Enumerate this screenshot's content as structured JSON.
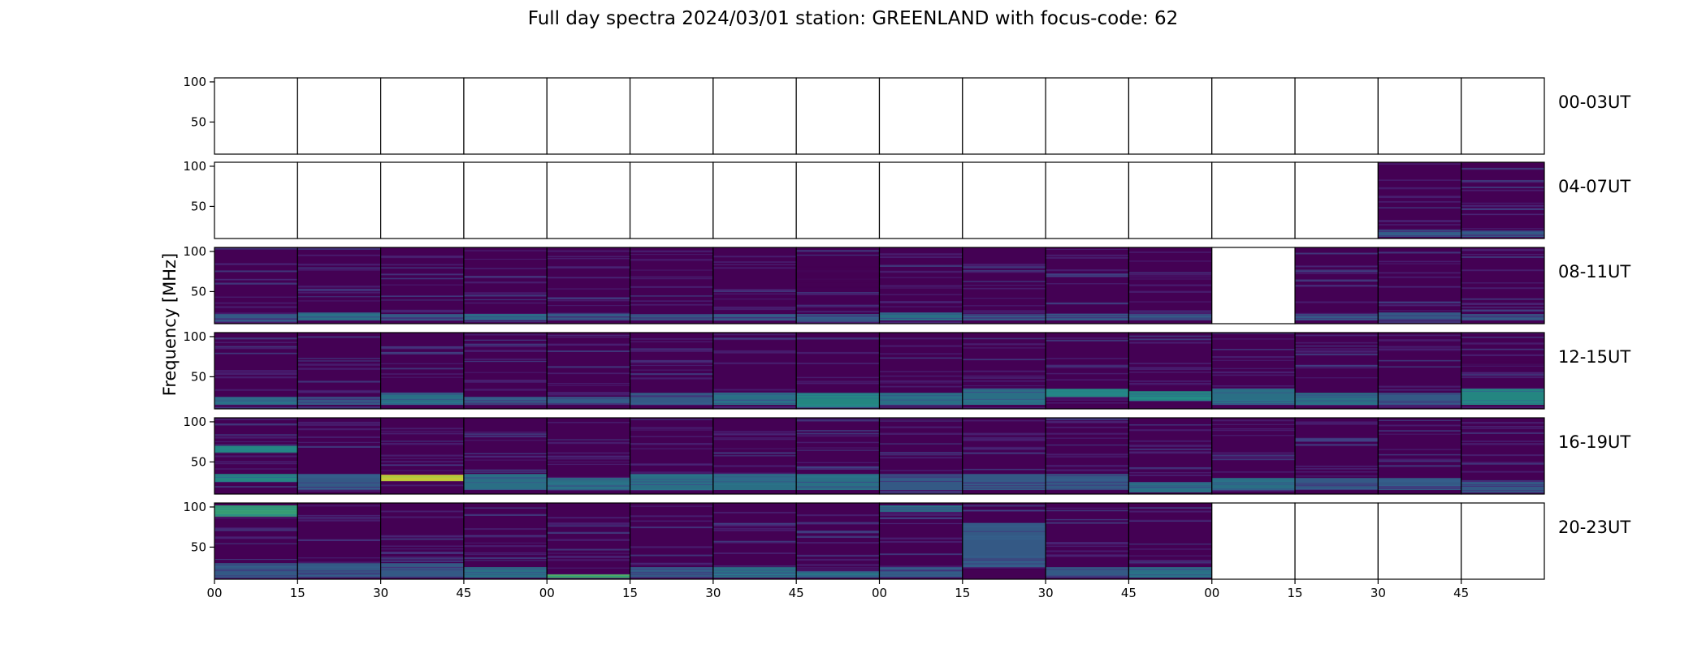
{
  "chart_data": {
    "type": "heatmap",
    "title": "Full day spectra 2024/03/01 station: GREENLAND with focus-code: 62",
    "ylabel": "Frequency [MHz]",
    "ylim": [
      10,
      105
    ],
    "yticks": [
      50,
      100
    ],
    "x_tick_labels": [
      "00",
      "15",
      "30",
      "45",
      "00",
      "15",
      "30",
      "45",
      "00",
      "15",
      "30",
      "45",
      "00",
      "15",
      "30",
      "45"
    ],
    "panels_per_row": 16,
    "colormap": [
      "#440154",
      "#482878",
      "#3e4a89",
      "#31688e",
      "#26828e",
      "#1f9e89",
      "#35b779",
      "#6ece58",
      "#b5de2b",
      "#fde725"
    ],
    "rows": [
      {
        "label": "00-03UT",
        "panels": [
          {
            "data": false
          },
          {
            "data": false
          },
          {
            "data": false
          },
          {
            "data": false
          },
          {
            "data": false
          },
          {
            "data": false
          },
          {
            "data": false
          },
          {
            "data": false
          },
          {
            "data": false
          },
          {
            "data": false
          },
          {
            "data": false
          },
          {
            "data": false
          },
          {
            "data": false
          },
          {
            "data": false
          },
          {
            "data": false
          },
          {
            "data": false
          }
        ]
      },
      {
        "label": "04-07UT",
        "panels": [
          {
            "data": false
          },
          {
            "data": false
          },
          {
            "data": false
          },
          {
            "data": false
          },
          {
            "data": false
          },
          {
            "data": false
          },
          {
            "data": false
          },
          {
            "data": false
          },
          {
            "data": false
          },
          {
            "data": false
          },
          {
            "data": false
          },
          {
            "data": false
          },
          {
            "data": false
          },
          {
            "data": false
          },
          {
            "data": true,
            "bands": [
              {
                "f0": 12,
                "f1": 20,
                "level": 0.35
              }
            ]
          },
          {
            "data": true,
            "bands": [
              {
                "f0": 12,
                "f1": 20,
                "level": 0.3
              }
            ]
          }
        ]
      },
      {
        "label": "08-11UT",
        "panels": [
          {
            "data": true,
            "bands": [
              {
                "f0": 12,
                "f1": 22,
                "level": 0.3
              }
            ]
          },
          {
            "data": true,
            "bands": [
              {
                "f0": 14,
                "f1": 24,
                "level": 0.45
              }
            ]
          },
          {
            "data": true,
            "bands": [
              {
                "f0": 14,
                "f1": 22,
                "level": 0.3
              }
            ]
          },
          {
            "data": true,
            "bands": [
              {
                "f0": 14,
                "f1": 22,
                "level": 0.4
              }
            ]
          },
          {
            "data": true,
            "bands": [
              {
                "f0": 14,
                "f1": 22,
                "level": 0.3
              }
            ]
          },
          {
            "data": true,
            "bands": [
              {
                "f0": 14,
                "f1": 22,
                "level": 0.35
              }
            ]
          },
          {
            "data": true,
            "bands": [
              {
                "f0": 14,
                "f1": 22,
                "level": 0.3
              }
            ]
          },
          {
            "data": true,
            "bands": [
              {
                "f0": 12,
                "f1": 22,
                "level": 0.3
              },
              {
                "f0": 55,
                "f1": 95,
                "level": 0.0
              }
            ]
          },
          {
            "data": true,
            "bands": [
              {
                "f0": 14,
                "f1": 24,
                "level": 0.4
              }
            ]
          },
          {
            "data": true,
            "bands": [
              {
                "f0": 14,
                "f1": 22,
                "level": 0.3
              }
            ]
          },
          {
            "data": true,
            "bands": [
              {
                "f0": 14,
                "f1": 22,
                "level": 0.3
              }
            ]
          },
          {
            "data": true,
            "bands": [
              {
                "f0": 14,
                "f1": 22,
                "level": 0.3
              }
            ]
          },
          {
            "data": false
          },
          {
            "data": true,
            "bands": [
              {
                "f0": 14,
                "f1": 22,
                "level": 0.3
              }
            ]
          },
          {
            "data": true,
            "bands": [
              {
                "f0": 14,
                "f1": 24,
                "level": 0.3
              }
            ]
          },
          {
            "data": true,
            "bands": [
              {
                "f0": 14,
                "f1": 22,
                "level": 0.3
              }
            ]
          }
        ]
      },
      {
        "label": "12-15UT",
        "panels": [
          {
            "data": true,
            "bands": [
              {
                "f0": 15,
                "f1": 25,
                "level": 0.4
              }
            ]
          },
          {
            "data": true,
            "bands": [
              {
                "f0": 15,
                "f1": 25,
                "level": 0.3
              }
            ]
          },
          {
            "data": true,
            "bands": [
              {
                "f0": 15,
                "f1": 30,
                "level": 0.4
              }
            ]
          },
          {
            "data": true,
            "bands": [
              {
                "f0": 15,
                "f1": 25,
                "level": 0.3
              }
            ]
          },
          {
            "data": true,
            "bands": [
              {
                "f0": 15,
                "f1": 25,
                "level": 0.3
              }
            ]
          },
          {
            "data": true,
            "bands": [
              {
                "f0": 15,
                "f1": 30,
                "level": 0.35
              }
            ]
          },
          {
            "data": true,
            "bands": [
              {
                "f0": 15,
                "f1": 30,
                "level": 0.45
              }
            ]
          },
          {
            "data": true,
            "bands": [
              {
                "f0": 12,
                "f1": 30,
                "level": 0.55
              }
            ]
          },
          {
            "data": true,
            "bands": [
              {
                "f0": 15,
                "f1": 30,
                "level": 0.4
              }
            ]
          },
          {
            "data": true,
            "bands": [
              {
                "f0": 15,
                "f1": 35,
                "level": 0.4
              }
            ]
          },
          {
            "data": true,
            "bands": [
              {
                "f0": 25,
                "f1": 35,
                "level": 0.6
              }
            ]
          },
          {
            "data": true,
            "bands": [
              {
                "f0": 20,
                "f1": 32,
                "level": 0.55
              }
            ]
          },
          {
            "data": true,
            "bands": [
              {
                "f0": 15,
                "f1": 35,
                "level": 0.4
              }
            ]
          },
          {
            "data": true,
            "bands": [
              {
                "f0": 15,
                "f1": 30,
                "level": 0.4
              }
            ]
          },
          {
            "data": true,
            "bands": [
              {
                "f0": 15,
                "f1": 30,
                "level": 0.35
              }
            ]
          },
          {
            "data": true,
            "bands": [
              {
                "f0": 15,
                "f1": 35,
                "level": 0.5
              },
              {
                "f0": 65,
                "f1": 75,
                "level": 0.0
              }
            ]
          }
        ]
      },
      {
        "label": "16-19UT",
        "panels": [
          {
            "data": true,
            "bands": [
              {
                "f0": 25,
                "f1": 35,
                "level": 0.5
              },
              {
                "f0": 62,
                "f1": 70,
                "level": 0.6
              }
            ]
          },
          {
            "data": true,
            "bands": [
              {
                "f0": 15,
                "f1": 35,
                "level": 0.35
              }
            ]
          },
          {
            "data": true,
            "bands": [
              {
                "f0": 26,
                "f1": 34,
                "level": 0.95
              }
            ]
          },
          {
            "data": true,
            "bands": [
              {
                "f0": 15,
                "f1": 35,
                "level": 0.4
              }
            ]
          },
          {
            "data": true,
            "bands": [
              {
                "f0": 15,
                "f1": 30,
                "level": 0.45
              }
            ]
          },
          {
            "data": true,
            "bands": [
              {
                "f0": 15,
                "f1": 35,
                "level": 0.45
              }
            ]
          },
          {
            "data": true,
            "bands": [
              {
                "f0": 15,
                "f1": 35,
                "level": 0.4
              }
            ]
          },
          {
            "data": true,
            "bands": [
              {
                "f0": 15,
                "f1": 35,
                "level": 0.4
              }
            ]
          },
          {
            "data": true,
            "bands": [
              {
                "f0": 15,
                "f1": 35,
                "level": 0.35
              }
            ]
          },
          {
            "data": true,
            "bands": [
              {
                "f0": 15,
                "f1": 35,
                "level": 0.35
              }
            ]
          },
          {
            "data": true,
            "bands": [
              {
                "f0": 15,
                "f1": 35,
                "level": 0.35
              }
            ]
          },
          {
            "data": true,
            "bands": [
              {
                "f0": 12,
                "f1": 25,
                "level": 0.45
              }
            ]
          },
          {
            "data": true,
            "bands": [
              {
                "f0": 15,
                "f1": 30,
                "level": 0.4
              }
            ]
          },
          {
            "data": true,
            "bands": [
              {
                "f0": 15,
                "f1": 30,
                "level": 0.35
              }
            ]
          },
          {
            "data": true,
            "bands": [
              {
                "f0": 15,
                "f1": 30,
                "level": 0.3
              }
            ]
          },
          {
            "data": true,
            "bands": [
              {
                "f0": 12,
                "f1": 25,
                "level": 0.35
              }
            ]
          }
        ]
      },
      {
        "label": "20-23UT",
        "panels": [
          {
            "data": true,
            "bands": [
              {
                "f0": 12,
                "f1": 30,
                "level": 0.35
              },
              {
                "f0": 88,
                "f1": 102,
                "level": 0.7
              }
            ]
          },
          {
            "data": true,
            "bands": [
              {
                "f0": 12,
                "f1": 30,
                "level": 0.3
              }
            ]
          },
          {
            "data": true,
            "bands": [
              {
                "f0": 12,
                "f1": 30,
                "level": 0.3
              }
            ]
          },
          {
            "data": true,
            "bands": [
              {
                "f0": 12,
                "f1": 25,
                "level": 0.4
              }
            ]
          },
          {
            "data": true,
            "bands": [
              {
                "f0": 12,
                "f1": 16,
                "level": 0.75
              }
            ]
          },
          {
            "data": true,
            "bands": [
              {
                "f0": 12,
                "f1": 25,
                "level": 0.35
              }
            ]
          },
          {
            "data": true,
            "bands": [
              {
                "f0": 12,
                "f1": 25,
                "level": 0.45
              }
            ]
          },
          {
            "data": true,
            "bands": [
              {
                "f0": 12,
                "f1": 20,
                "level": 0.4
              }
            ]
          },
          {
            "data": true,
            "bands": [
              {
                "f0": 12,
                "f1": 25,
                "level": 0.3
              },
              {
                "f0": 94,
                "f1": 102,
                "level": 0.45
              }
            ]
          },
          {
            "data": true,
            "bands": [
              {
                "f0": 25,
                "f1": 80,
                "level": 0.35
              }
            ]
          },
          {
            "data": true,
            "bands": [
              {
                "f0": 12,
                "f1": 25,
                "level": 0.35
              }
            ]
          },
          {
            "data": true,
            "bands": [
              {
                "f0": 12,
                "f1": 25,
                "level": 0.45
              }
            ]
          },
          {
            "data": false
          },
          {
            "data": false
          },
          {
            "data": false
          },
          {
            "data": false
          }
        ]
      }
    ]
  }
}
